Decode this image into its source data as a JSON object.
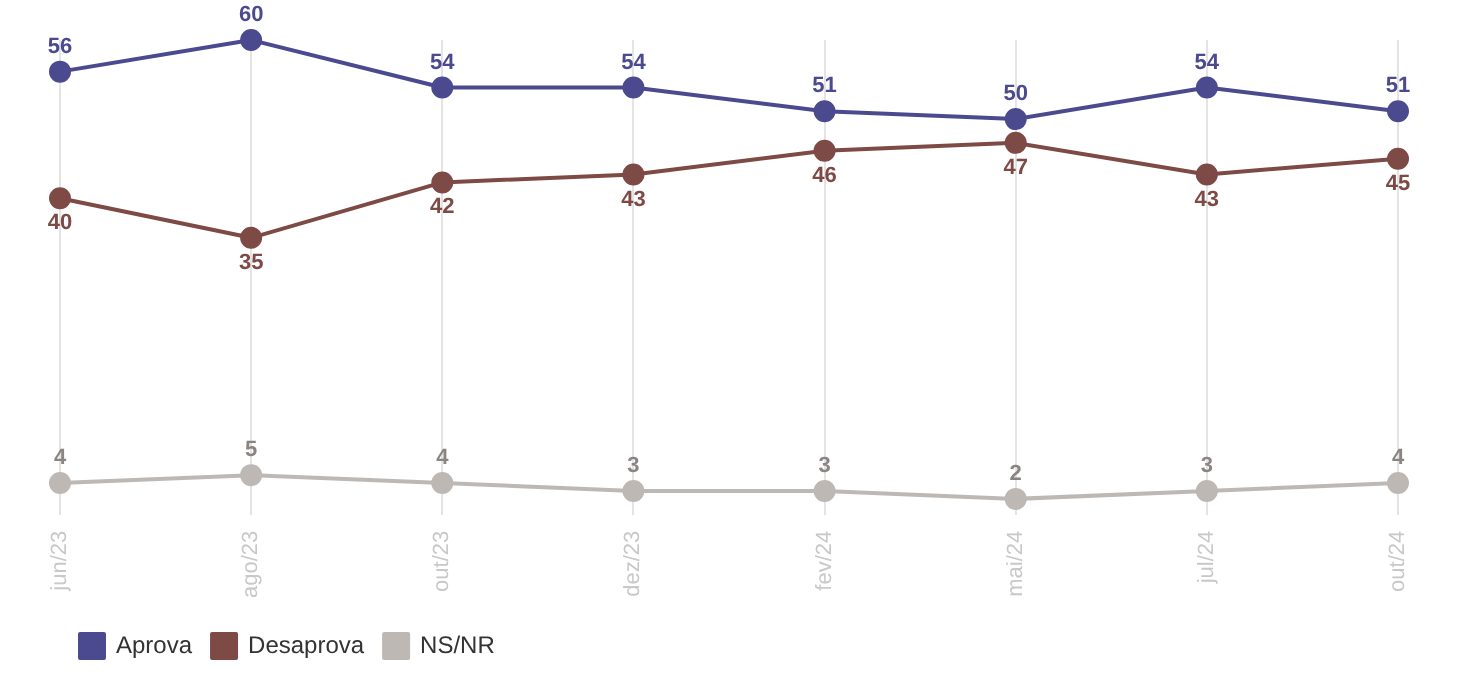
{
  "chart_data": {
    "type": "line",
    "categories": [
      "jun/23",
      "ago/23",
      "out/23",
      "dez/23",
      "fev/24",
      "mai/24",
      "jul/24",
      "out/24"
    ],
    "series": [
      {
        "name": "Aprova",
        "color": "#4b4a8f",
        "values": [
          56,
          60,
          54,
          54,
          51,
          50,
          54,
          51
        ]
      },
      {
        "name": "Desaprova",
        "color": "#7d4a45",
        "values": [
          40,
          35,
          42,
          43,
          46,
          47,
          43,
          45
        ]
      },
      {
        "name": "NS/NR",
        "color": "#bdb8b4",
        "values": [
          4,
          5,
          4,
          3,
          3,
          2,
          3,
          4
        ]
      }
    ],
    "data_labels": true,
    "grid": "x",
    "legend": "bottom left",
    "marker": "circle",
    "line_style": "solid"
  }
}
